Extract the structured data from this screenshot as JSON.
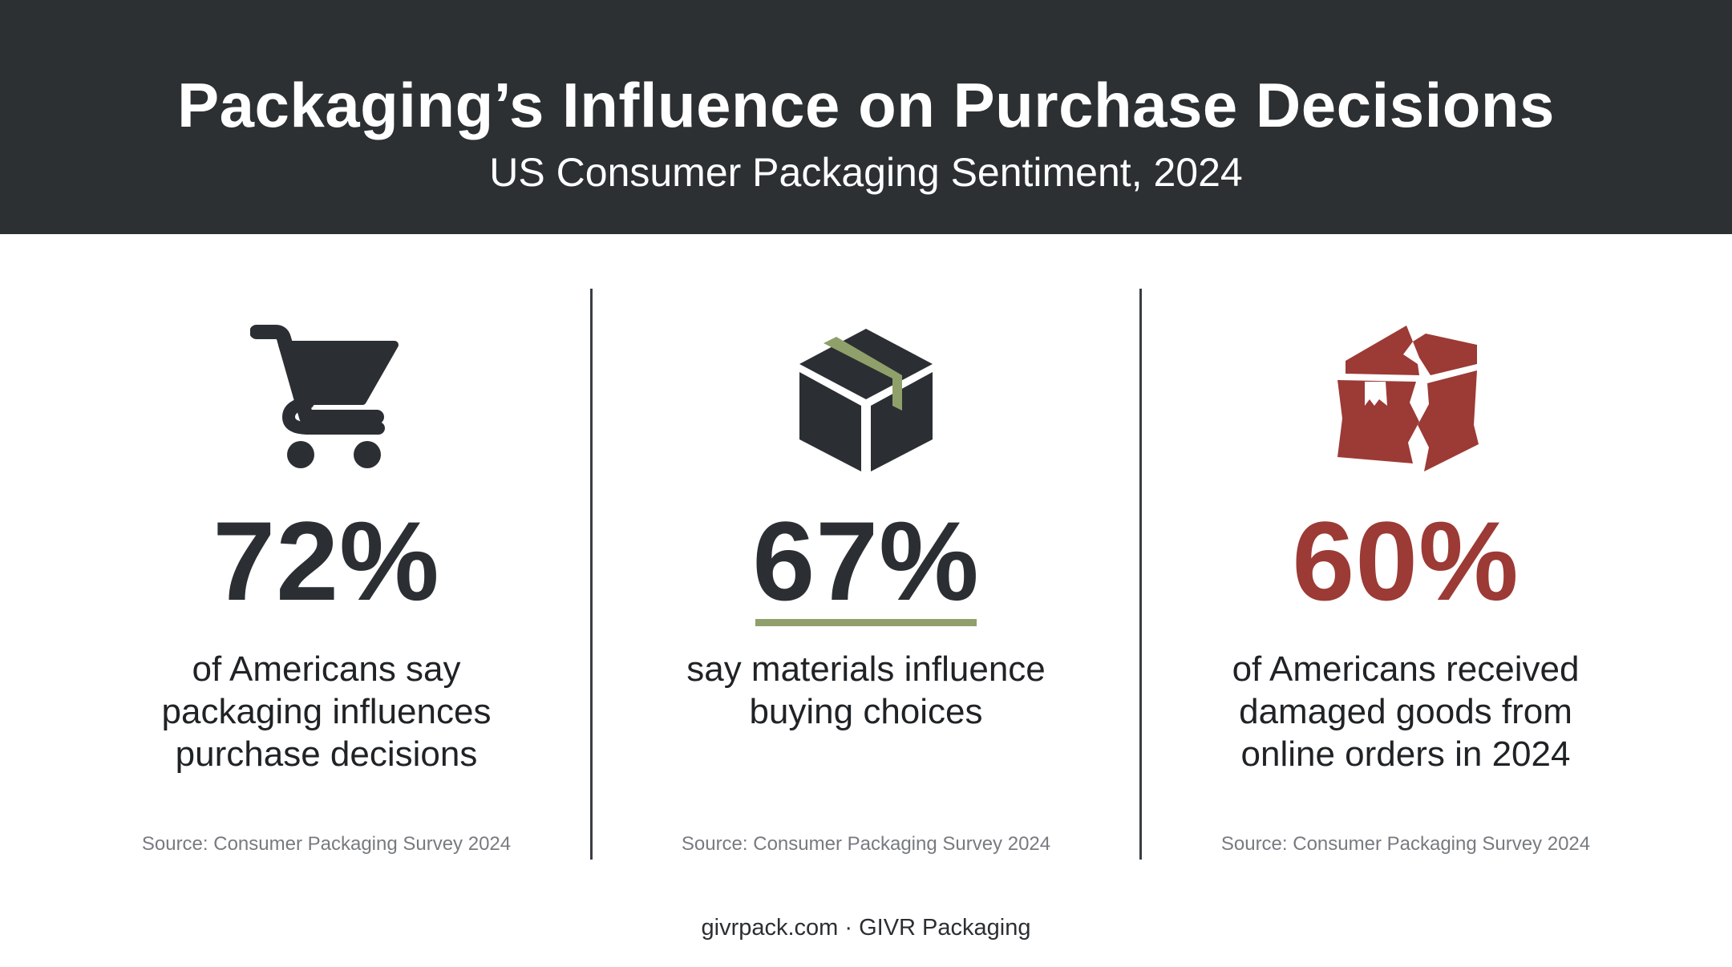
{
  "header": {
    "title": "Packaging’s Influence on Purchase Decisions",
    "subtitle": "US Consumer Packaging Sentiment, 2024"
  },
  "panels": [
    {
      "icon": "shopping-cart-icon",
      "stat": "72%",
      "stat_color": "#2b2f33",
      "description_lines": [
        "of Americans say",
        "packaging influences",
        "purchase decisions"
      ],
      "source": "Source: Consumer Packaging Survey 2024"
    },
    {
      "icon": "closed-box-icon",
      "stat": "67%",
      "stat_color": "#2b2f33",
      "underline_color": "#8fa06a",
      "description_lines": [
        "say materials influence",
        "buying choices"
      ],
      "source": "Source: Consumer Packaging Survey 2024"
    },
    {
      "icon": "damaged-box-icon",
      "stat": "60%",
      "stat_color": "#9c3a35",
      "description_lines": [
        "of Americans received",
        "damaged goods from",
        "online orders in 2024"
      ],
      "source": "Source: Consumer Packaging Survey 2024"
    }
  ],
  "footer": {
    "text": "givrpack.com · GIVR Packaging"
  },
  "colors": {
    "header_bg": "#2c3033",
    "dark": "#2b2f33",
    "accent_green": "#8fa06a",
    "accent_red": "#9c3a35"
  }
}
